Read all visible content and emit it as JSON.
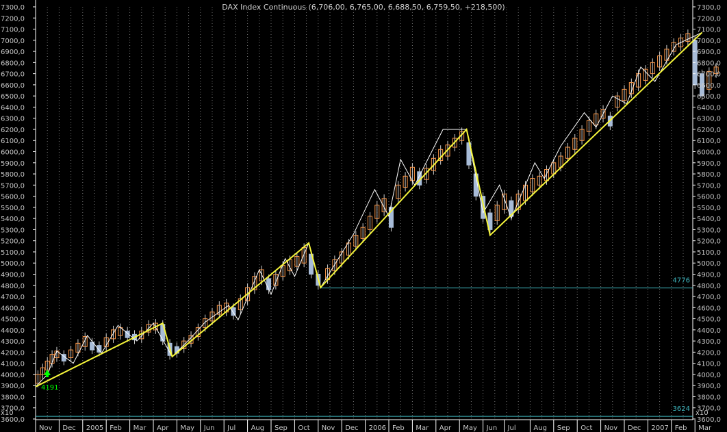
{
  "chart_data": {
    "type": "candlestick",
    "title": "DAX Index Continuous (6,706,00, 6,765,00, 6,688,50, 6,759,50, +218,500)",
    "ylim": [
      3600,
      7300
    ],
    "y_ticks": [
      "3600,0",
      "3700,0",
      "3800,0",
      "3900,0",
      "4000,0",
      "4100,0",
      "4200,0",
      "4300,0",
      "4400,0",
      "4500,0",
      "4600,0",
      "4700,0",
      "4800,0",
      "4900,0",
      "5000,0",
      "5100,0",
      "5200,0",
      "5300,0",
      "5400,0",
      "5500,0",
      "5600,0",
      "5700,0",
      "5800,0",
      "5900,0",
      "6000,0",
      "6100,0",
      "6200,0",
      "6300,0",
      "6400,0",
      "6500,0",
      "6600,0",
      "6700,0",
      "6800,0",
      "6900,0",
      "7000,0",
      "7100,0",
      "7200,0",
      "7300,0"
    ],
    "y_tick_values": [
      3600,
      3700,
      3800,
      3900,
      4000,
      4100,
      4200,
      4300,
      4400,
      4500,
      4600,
      4700,
      4800,
      4900,
      5000,
      5100,
      5200,
      5300,
      5400,
      5500,
      5600,
      5700,
      5800,
      5900,
      6000,
      6100,
      6200,
      6300,
      6400,
      6500,
      6600,
      6700,
      6800,
      6900,
      7000,
      7100,
      7200,
      7300
    ],
    "x_labels": [
      "Nov",
      "Dec",
      "2005",
      "Feb",
      "Mar",
      "Apr",
      "May",
      "Jun",
      "Jul",
      "Aug",
      "Sep",
      "Oct",
      "Nov",
      "Dec",
      "2006",
      "Feb",
      "Mar",
      "Apr",
      "May",
      "Jun",
      "Jul",
      "Aug",
      "Sep",
      "Oct",
      "Nov",
      "Dec",
      "2007",
      "Feb",
      "Mar"
    ],
    "x_label_months": [
      0,
      1,
      2,
      3,
      4,
      5,
      6,
      7,
      8,
      9,
      10,
      11,
      12,
      13,
      14,
      15,
      16,
      17,
      18,
      19,
      19.9,
      21,
      22,
      23,
      24,
      25,
      26,
      27,
      28
    ],
    "scale_label": "x10",
    "zigzag_major": [
      [
        0,
        3890
      ],
      [
        5.4,
        4460
      ],
      [
        5.8,
        4160
      ],
      [
        11.6,
        5180
      ],
      [
        12.1,
        4780
      ],
      [
        18.3,
        6200
      ],
      [
        19.3,
        5250
      ],
      [
        28.3,
        7070
      ]
    ],
    "zigzag_minor": [
      [
        0,
        3890
      ],
      [
        0.5,
        4000
      ],
      [
        0.9,
        4210
      ],
      [
        1.6,
        4100
      ],
      [
        2.2,
        4350
      ],
      [
        2.8,
        4190
      ],
      [
        3.5,
        4440
      ],
      [
        4.3,
        4300
      ],
      [
        5,
        4460
      ],
      [
        5.8,
        4160
      ],
      [
        6.6,
        4330
      ],
      [
        7.2,
        4470
      ],
      [
        8.2,
        4620
      ],
      [
        8.6,
        4490
      ],
      [
        9.5,
        4940
      ],
      [
        10,
        4720
      ],
      [
        10.6,
        5040
      ],
      [
        11,
        4880
      ],
      [
        11.6,
        5180
      ],
      [
        12.1,
        4780
      ],
      [
        13.5,
        5260
      ],
      [
        14.4,
        5660
      ],
      [
        15,
        5420
      ],
      [
        15.5,
        5930
      ],
      [
        16.1,
        5700
      ],
      [
        17.3,
        6200
      ],
      [
        18.3,
        6200
      ],
      [
        19,
        5450
      ],
      [
        19.7,
        5700
      ],
      [
        20.2,
        5400
      ],
      [
        21.2,
        5900
      ],
      [
        21.6,
        5760
      ],
      [
        22.3,
        6050
      ],
      [
        23.3,
        6350
      ],
      [
        23.8,
        6220
      ],
      [
        24.5,
        6500
      ],
      [
        25.1,
        6430
      ],
      [
        25.7,
        6760
      ],
      [
        26.3,
        6630
      ],
      [
        27.2,
        6960
      ],
      [
        28.3,
        7070
      ]
    ],
    "candles_approx": [
      [
        0.1,
        3920,
        4000
      ],
      [
        0.3,
        4000,
        4060
      ],
      [
        0.5,
        4040,
        4120
      ],
      [
        0.7,
        4100,
        4180
      ],
      [
        0.9,
        4150,
        4210
      ],
      [
        1.2,
        4120,
        4180
      ],
      [
        1.5,
        4150,
        4220
      ],
      [
        1.8,
        4200,
        4280
      ],
      [
        2.1,
        4250,
        4340
      ],
      [
        2.4,
        4220,
        4290
      ],
      [
        2.7,
        4200,
        4260
      ],
      [
        3,
        4250,
        4330
      ],
      [
        3.3,
        4320,
        4400
      ],
      [
        3.6,
        4350,
        4420
      ],
      [
        3.9,
        4330,
        4390
      ],
      [
        4.2,
        4310,
        4360
      ],
      [
        4.5,
        4320,
        4390
      ],
      [
        4.8,
        4380,
        4450
      ],
      [
        5.1,
        4400,
        4460
      ],
      [
        5.4,
        4300,
        4450
      ],
      [
        5.7,
        4170,
        4280
      ],
      [
        6,
        4190,
        4250
      ],
      [
        6.3,
        4230,
        4300
      ],
      [
        6.6,
        4280,
        4350
      ],
      [
        6.9,
        4340,
        4420
      ],
      [
        7.2,
        4420,
        4500
      ],
      [
        7.5,
        4480,
        4560
      ],
      [
        7.8,
        4540,
        4620
      ],
      [
        8.1,
        4560,
        4640
      ],
      [
        8.4,
        4530,
        4600
      ],
      [
        8.7,
        4580,
        4680
      ],
      [
        9,
        4660,
        4780
      ],
      [
        9.3,
        4760,
        4880
      ],
      [
        9.6,
        4840,
        4940
      ],
      [
        9.9,
        4760,
        4860
      ],
      [
        10.2,
        4800,
        4900
      ],
      [
        10.5,
        4880,
        4980
      ],
      [
        10.8,
        4930,
        5030
      ],
      [
        11.1,
        4970,
        5060
      ],
      [
        11.4,
        5000,
        5140
      ],
      [
        11.7,
        4900,
        5080
      ],
      [
        12,
        4800,
        4900
      ],
      [
        12.4,
        4850,
        4950
      ],
      [
        12.7,
        4930,
        5030
      ],
      [
        13,
        5000,
        5100
      ],
      [
        13.3,
        5070,
        5180
      ],
      [
        13.6,
        5150,
        5250
      ],
      [
        13.9,
        5220,
        5320
      ],
      [
        14.2,
        5300,
        5420
      ],
      [
        14.5,
        5400,
        5520
      ],
      [
        14.8,
        5460,
        5580
      ],
      [
        15.1,
        5320,
        5500
      ],
      [
        15.4,
        5580,
        5700
      ],
      [
        15.7,
        5680,
        5780
      ],
      [
        16,
        5740,
        5860
      ],
      [
        16.3,
        5700,
        5820
      ],
      [
        16.6,
        5750,
        5850
      ],
      [
        16.9,
        5830,
        5940
      ],
      [
        17.2,
        5920,
        6020
      ],
      [
        17.5,
        5960,
        6060
      ],
      [
        17.8,
        6040,
        6120
      ],
      [
        18.1,
        6100,
        6180
      ],
      [
        18.4,
        5880,
        6080
      ],
      [
        18.7,
        5600,
        5800
      ],
      [
        19,
        5400,
        5600
      ],
      [
        19.3,
        5300,
        5450
      ],
      [
        19.6,
        5380,
        5520
      ],
      [
        19.9,
        5480,
        5620
      ],
      [
        20.2,
        5420,
        5560
      ],
      [
        20.5,
        5480,
        5620
      ],
      [
        20.8,
        5560,
        5700
      ],
      [
        21.1,
        5640,
        5760
      ],
      [
        21.4,
        5700,
        5780
      ],
      [
        21.7,
        5740,
        5840
      ],
      [
        22,
        5800,
        5900
      ],
      [
        22.3,
        5860,
        5960
      ],
      [
        22.6,
        5940,
        6040
      ],
      [
        22.9,
        6020,
        6120
      ],
      [
        23.2,
        6100,
        6200
      ],
      [
        23.5,
        6180,
        6280
      ],
      [
        23.8,
        6240,
        6340
      ],
      [
        24.1,
        6300,
        6380
      ],
      [
        24.4,
        6230,
        6320
      ],
      [
        24.7,
        6400,
        6500
      ],
      [
        25,
        6460,
        6560
      ],
      [
        25.3,
        6520,
        6620
      ],
      [
        25.6,
        6580,
        6700
      ],
      [
        25.9,
        6640,
        6740
      ],
      [
        26.2,
        6700,
        6800
      ],
      [
        26.5,
        6760,
        6860
      ],
      [
        26.8,
        6820,
        6920
      ],
      [
        27.1,
        6900,
        6980
      ],
      [
        27.4,
        6940,
        7020
      ],
      [
        27.7,
        6990,
        7060
      ],
      [
        28,
        6600,
        7000
      ],
      [
        28.3,
        6500,
        6700
      ],
      [
        28.6,
        6560,
        6720
      ],
      [
        28.9,
        6700,
        6760
      ]
    ],
    "hlines": [
      {
        "label": "4776",
        "value": 4776
      },
      {
        "label": "3624",
        "value": 3624
      }
    ],
    "marker_label": "4191",
    "grid": "vertical dotted",
    "legend": "none"
  }
}
